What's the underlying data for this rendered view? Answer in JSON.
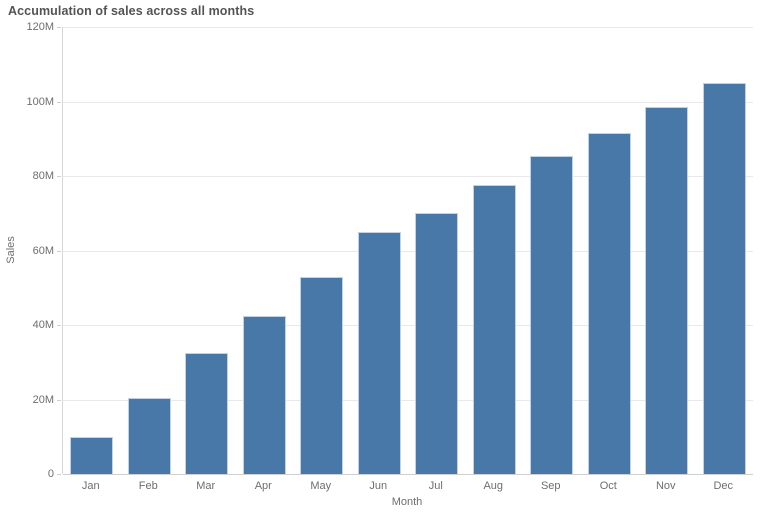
{
  "chart_data": {
    "type": "bar",
    "title": "Accumulation of sales across all months",
    "xlabel": "Month",
    "ylabel": "Sales",
    "categories": [
      "Jan",
      "Feb",
      "Mar",
      "Apr",
      "May",
      "Jun",
      "Jul",
      "Aug",
      "Sep",
      "Oct",
      "Nov",
      "Dec"
    ],
    "values": [
      10,
      20.5,
      32.5,
      42.5,
      53,
      65,
      70,
      77.5,
      85.5,
      91.5,
      98.5,
      105
    ],
    "value_unit": "M",
    "ylim": [
      0,
      120
    ],
    "ytick_step": 20,
    "ytick_labels": [
      "0",
      "20M",
      "40M",
      "60M",
      "80M",
      "100M",
      "120M"
    ],
    "grid": true,
    "legend_position": "none",
    "bar_color": "#4878a8",
    "bar_border_color": "#c3d1e2",
    "title_color": "#545454",
    "tick_label_color": "#6e6e6e"
  }
}
